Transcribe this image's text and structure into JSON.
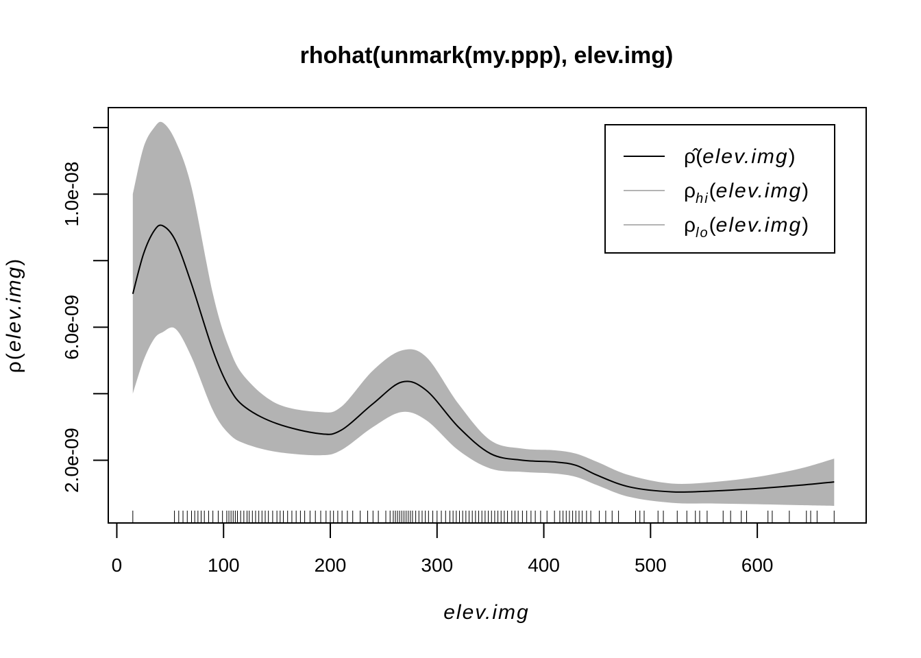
{
  "chart_data": {
    "type": "line",
    "title": "rhohat(unmark(my.ppp), elev.img)",
    "xlabel": "elev.img",
    "ylabel": {
      "symbol": "ρ",
      "arg": "elev.img"
    },
    "xlim": [
      -8,
      702
    ],
    "ylim": [
      1.15e-10,
      1.26e-08
    ],
    "x_ticks": [
      0,
      100,
      200,
      300,
      400,
      500,
      600
    ],
    "x_tick_labels": [
      "0",
      "100",
      "200",
      "300",
      "400",
      "500",
      "600"
    ],
    "y_ticks": [
      2e-09,
      4e-09,
      6e-09,
      8e-09,
      1e-08,
      1.2e-08
    ],
    "y_tick_labels": [
      "2.0e-09",
      "",
      "6.0e-09",
      "",
      "1.0e-08",
      ""
    ],
    "legend_position": "top-right",
    "legend": [
      {
        "symbol": "ρ̂",
        "sub": "",
        "arg": "elev.img",
        "color": "#000000"
      },
      {
        "symbol": "ρ",
        "sub": "hi",
        "arg": "elev.img",
        "color": "#b3b3b3"
      },
      {
        "symbol": "ρ",
        "sub": "lo",
        "arg": "elev.img",
        "color": "#b3b3b3"
      }
    ],
    "band_color": "#b3b3b3",
    "line_color": "#000000",
    "x": [
      15,
      25,
      35,
      43,
      55,
      70,
      90,
      105,
      120,
      150,
      190,
      210,
      240,
      267,
      290,
      320,
      350,
      380,
      410,
      430,
      450,
      480,
      520,
      560,
      600,
      640,
      672
    ],
    "series": [
      {
        "key": "est",
        "values": [
          7e-09,
          8.2e-09,
          8.9e-09,
          9.05e-09,
          8.6e-09,
          7.3e-09,
          5.3e-09,
          4.2e-09,
          3.6e-09,
          3.1e-09,
          2.8e-09,
          2.9e-09,
          3.7e-09,
          4.35e-09,
          4.1e-09,
          3e-09,
          2.2e-09,
          2e-09,
          1.95e-09,
          1.85e-09,
          1.55e-09,
          1.2e-09,
          1.05e-09,
          1.08e-09,
          1.15e-09,
          1.25e-09,
          1.35e-09
        ]
      },
      {
        "key": "hi",
        "values": [
          1e-08,
          1.14e-08,
          1.2e-08,
          1.215e-08,
          1.16e-08,
          1.02e-08,
          7e-09,
          5.4e-09,
          4.5e-09,
          3.7e-09,
          3.45e-09,
          3.6e-09,
          4.7e-09,
          5.3e-09,
          5.1e-09,
          3.7e-09,
          2.6e-09,
          2.35e-09,
          2.3e-09,
          2.2e-09,
          1.95e-09,
          1.55e-09,
          1.3e-09,
          1.35e-09,
          1.5e-09,
          1.75e-09,
          2.05e-09
        ]
      },
      {
        "key": "lo",
        "values": [
          4e-09,
          5e-09,
          5.65e-09,
          5.85e-09,
          5.95e-09,
          5.1e-09,
          3.5e-09,
          2.8e-09,
          2.5e-09,
          2.25e-09,
          2.15e-09,
          2.3e-09,
          3e-09,
          3.45e-09,
          3.2e-09,
          2.3e-09,
          1.75e-09,
          1.65e-09,
          1.6e-09,
          1.5e-09,
          1.25e-09,
          9e-10,
          7.2e-10,
          7e-10,
          6.8e-10,
          6.5e-10,
          6.3e-10
        ]
      }
    ],
    "rug": [
      15,
      54,
      58,
      62,
      66,
      70,
      73,
      76,
      79,
      82,
      86,
      90,
      95,
      99,
      103,
      105,
      107,
      109,
      111,
      113,
      116,
      119,
      122,
      124,
      127,
      130,
      133,
      136,
      139,
      142,
      146,
      150,
      153,
      156,
      160,
      164,
      168,
      172,
      176,
      181,
      186,
      191,
      196,
      200,
      203,
      207,
      211,
      216,
      221,
      228,
      235,
      240,
      245,
      252,
      256,
      259,
      261,
      263,
      265,
      267,
      269,
      271,
      273,
      275,
      277,
      280,
      283,
      286,
      289,
      292,
      296,
      300,
      304,
      308,
      312,
      315,
      318,
      321,
      324,
      327,
      330,
      333,
      336,
      339,
      342,
      345,
      348,
      351,
      354,
      357,
      360,
      363,
      366,
      370,
      373,
      376,
      380,
      384,
      388,
      392,
      397,
      403,
      410,
      415,
      418,
      421,
      424,
      427,
      430,
      433,
      436,
      440,
      444,
      452,
      458,
      464,
      470,
      486,
      490,
      494,
      507,
      512,
      525,
      534,
      542,
      546,
      553,
      568,
      575,
      585,
      590,
      610,
      614,
      630,
      646,
      650,
      656,
      672
    ]
  }
}
